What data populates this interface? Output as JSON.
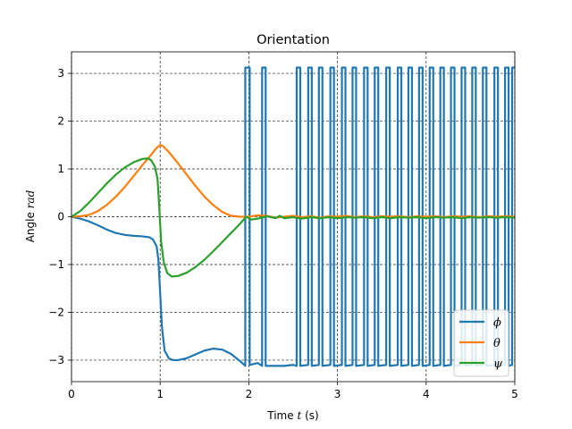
{
  "chart_data": {
    "type": "line",
    "title": "Orientation",
    "xlabel": "Time t (s)",
    "xlabel_parts": {
      "prefix": "Time ",
      "var": "t",
      "suffix": " (s)"
    },
    "ylabel": "Angle rad",
    "ylabel_parts": {
      "prefix": "Angle ",
      "var": "rad"
    },
    "xlim": [
      0,
      5
    ],
    "ylim": [
      -3.45,
      3.45
    ],
    "xticks": [
      0,
      1,
      2,
      3,
      4,
      5
    ],
    "xtick_labels": [
      "0",
      "1",
      "2",
      "3",
      "4",
      "5"
    ],
    "yticks": [
      -3,
      -2,
      -1,
      0,
      1,
      2,
      3
    ],
    "ytick_labels": [
      "−3",
      "−2",
      "−1",
      "0",
      "1",
      "2",
      "3"
    ],
    "grid": true,
    "legend_position": "bottom-right",
    "series": [
      {
        "name": "ϕ",
        "color": "#1f77b4",
        "points": [
          [
            0,
            0
          ],
          [
            0.1,
            -0.04
          ],
          [
            0.2,
            -0.1
          ],
          [
            0.3,
            -0.18
          ],
          [
            0.4,
            -0.27
          ],
          [
            0.5,
            -0.34
          ],
          [
            0.6,
            -0.38
          ],
          [
            0.7,
            -0.4
          ],
          [
            0.8,
            -0.41
          ],
          [
            0.88,
            -0.43
          ],
          [
            0.92,
            -0.48
          ],
          [
            0.96,
            -0.62
          ],
          [
            0.98,
            -0.9
          ],
          [
            1.0,
            -1.6
          ],
          [
            1.02,
            -2.3
          ],
          [
            1.05,
            -2.8
          ],
          [
            1.1,
            -2.97
          ],
          [
            1.15,
            -3.0
          ],
          [
            1.2,
            -3.0
          ],
          [
            1.3,
            -2.96
          ],
          [
            1.4,
            -2.88
          ],
          [
            1.5,
            -2.8
          ],
          [
            1.6,
            -2.76
          ],
          [
            1.7,
            -2.78
          ],
          [
            1.8,
            -2.87
          ],
          [
            1.9,
            -3.02
          ],
          [
            1.95,
            -3.1
          ],
          [
            1.96,
            -3.12
          ],
          [
            1.96,
            3.12
          ],
          [
            2.01,
            3.12
          ],
          [
            2.01,
            -3.1
          ],
          [
            2.1,
            -3.06
          ],
          [
            2.15,
            -3.12
          ],
          [
            2.15,
            3.12
          ],
          [
            2.19,
            3.12
          ],
          [
            2.19,
            -3.12
          ],
          [
            2.3,
            -3.12
          ],
          [
            2.4,
            -3.12
          ],
          [
            2.5,
            -3.1
          ],
          [
            2.54,
            -3.12
          ],
          [
            2.54,
            3.12
          ],
          [
            2.58,
            3.12
          ],
          [
            2.58,
            -3.12
          ],
          [
            2.67,
            -3.1
          ],
          [
            2.67,
            3.12
          ],
          [
            2.71,
            3.12
          ],
          [
            2.71,
            -3.12
          ],
          [
            2.79,
            -3.1
          ],
          [
            2.79,
            3.12
          ],
          [
            2.83,
            3.12
          ],
          [
            2.83,
            -3.12
          ],
          [
            2.92,
            -3.1
          ],
          [
            2.92,
            3.12
          ],
          [
            2.96,
            3.12
          ],
          [
            2.96,
            -3.12
          ],
          [
            3.05,
            -3.1
          ],
          [
            3.05,
            3.12
          ],
          [
            3.09,
            3.12
          ],
          [
            3.09,
            -3.12
          ],
          [
            3.17,
            -3.1
          ],
          [
            3.17,
            3.12
          ],
          [
            3.21,
            3.12
          ],
          [
            3.21,
            -3.12
          ],
          [
            3.3,
            -3.1
          ],
          [
            3.3,
            3.12
          ],
          [
            3.34,
            3.12
          ],
          [
            3.34,
            -3.12
          ],
          [
            3.42,
            -3.1
          ],
          [
            3.42,
            3.12
          ],
          [
            3.46,
            3.12
          ],
          [
            3.46,
            -3.12
          ],
          [
            3.55,
            -3.1
          ],
          [
            3.55,
            3.12
          ],
          [
            3.59,
            3.12
          ],
          [
            3.59,
            -3.12
          ],
          [
            3.68,
            -3.1
          ],
          [
            3.68,
            3.12
          ],
          [
            3.72,
            3.12
          ],
          [
            3.72,
            -3.12
          ],
          [
            3.8,
            -3.1
          ],
          [
            3.8,
            3.12
          ],
          [
            3.84,
            3.12
          ],
          [
            3.84,
            -3.12
          ],
          [
            3.92,
            -3.1
          ],
          [
            3.92,
            3.12
          ],
          [
            3.96,
            3.12
          ],
          [
            3.96,
            -3.12
          ],
          [
            4.04,
            -3.1
          ],
          [
            4.04,
            3.12
          ],
          [
            4.08,
            3.12
          ],
          [
            4.08,
            -3.12
          ],
          [
            4.16,
            -3.1
          ],
          [
            4.16,
            3.12
          ],
          [
            4.2,
            3.12
          ],
          [
            4.2,
            -3.12
          ],
          [
            4.28,
            -3.1
          ],
          [
            4.28,
            3.12
          ],
          [
            4.32,
            3.12
          ],
          [
            4.32,
            -3.12
          ],
          [
            4.4,
            -3.1
          ],
          [
            4.4,
            3.12
          ],
          [
            4.44,
            3.12
          ],
          [
            4.44,
            -3.12
          ],
          [
            4.52,
            -3.1
          ],
          [
            4.52,
            3.12
          ],
          [
            4.56,
            3.12
          ],
          [
            4.56,
            -3.12
          ],
          [
            4.64,
            -3.1
          ],
          [
            4.64,
            3.12
          ],
          [
            4.68,
            3.12
          ],
          [
            4.68,
            -3.12
          ],
          [
            4.77,
            -3.1
          ],
          [
            4.77,
            3.12
          ],
          [
            4.81,
            3.12
          ],
          [
            4.81,
            -3.12
          ],
          [
            4.89,
            -3.1
          ],
          [
            4.89,
            3.12
          ],
          [
            4.93,
            3.12
          ],
          [
            4.93,
            -3.12
          ],
          [
            4.97,
            -3.1
          ],
          [
            4.97,
            3.12
          ],
          [
            5.0,
            3.12
          ]
        ]
      },
      {
        "name": "θ",
        "color": "#ff7f0e",
        "points": [
          [
            0,
            0
          ],
          [
            0.1,
            0.01
          ],
          [
            0.2,
            0.04
          ],
          [
            0.3,
            0.12
          ],
          [
            0.4,
            0.25
          ],
          [
            0.5,
            0.42
          ],
          [
            0.6,
            0.62
          ],
          [
            0.7,
            0.85
          ],
          [
            0.8,
            1.08
          ],
          [
            0.9,
            1.3
          ],
          [
            0.96,
            1.44
          ],
          [
            1.0,
            1.5
          ],
          [
            1.03,
            1.48
          ],
          [
            1.1,
            1.35
          ],
          [
            1.2,
            1.12
          ],
          [
            1.3,
            0.88
          ],
          [
            1.4,
            0.64
          ],
          [
            1.5,
            0.42
          ],
          [
            1.6,
            0.24
          ],
          [
            1.7,
            0.1
          ],
          [
            1.8,
            0.02
          ],
          [
            1.9,
            0.0
          ],
          [
            2.0,
            0.0
          ],
          [
            2.1,
            0.03
          ],
          [
            2.2,
            0.02
          ],
          [
            2.3,
            -0.02
          ],
          [
            2.4,
            0.0
          ],
          [
            2.5,
            0.02
          ],
          [
            2.6,
            -0.01
          ],
          [
            2.7,
            0.01
          ],
          [
            2.8,
            -0.02
          ],
          [
            2.9,
            0.01
          ],
          [
            3.0,
            0.0
          ],
          [
            3.1,
            0.02
          ],
          [
            3.2,
            -0.01
          ],
          [
            3.3,
            0.01
          ],
          [
            3.4,
            -0.01
          ],
          [
            3.5,
            0.01
          ],
          [
            3.6,
            0.0
          ],
          [
            3.7,
            0.01
          ],
          [
            3.8,
            -0.01
          ],
          [
            3.9,
            0.01
          ],
          [
            4.0,
            0.0
          ],
          [
            4.1,
            0.01
          ],
          [
            4.2,
            -0.01
          ],
          [
            4.3,
            0.01
          ],
          [
            4.4,
            0.0
          ],
          [
            4.5,
            0.01
          ],
          [
            4.6,
            -0.01
          ],
          [
            4.7,
            0.01
          ],
          [
            4.8,
            0.0
          ],
          [
            4.9,
            0.01
          ],
          [
            5.0,
            0.0
          ]
        ]
      },
      {
        "name": "ψ",
        "color": "#2ca02c",
        "points": [
          [
            0,
            0
          ],
          [
            0.1,
            0.12
          ],
          [
            0.2,
            0.3
          ],
          [
            0.3,
            0.5
          ],
          [
            0.4,
            0.7
          ],
          [
            0.5,
            0.88
          ],
          [
            0.6,
            1.03
          ],
          [
            0.7,
            1.14
          ],
          [
            0.8,
            1.21
          ],
          [
            0.86,
            1.22
          ],
          [
            0.9,
            1.18
          ],
          [
            0.94,
            1.05
          ],
          [
            0.97,
            0.8
          ],
          [
            0.99,
            0.2
          ],
          [
            1.01,
            -0.5
          ],
          [
            1.04,
            -0.95
          ],
          [
            1.08,
            -1.18
          ],
          [
            1.13,
            -1.25
          ],
          [
            1.2,
            -1.24
          ],
          [
            1.3,
            -1.17
          ],
          [
            1.4,
            -1.05
          ],
          [
            1.5,
            -0.9
          ],
          [
            1.6,
            -0.72
          ],
          [
            1.7,
            -0.53
          ],
          [
            1.8,
            -0.34
          ],
          [
            1.9,
            -0.15
          ],
          [
            1.97,
            0.0
          ],
          [
            2.03,
            -0.06
          ],
          [
            2.1,
            -0.04
          ],
          [
            2.2,
            0.01
          ],
          [
            2.3,
            -0.03
          ],
          [
            2.35,
            0.02
          ],
          [
            2.4,
            -0.03
          ],
          [
            2.5,
            -0.01
          ],
          [
            2.6,
            -0.04
          ],
          [
            2.7,
            -0.01
          ],
          [
            2.8,
            -0.03
          ],
          [
            2.9,
            -0.01
          ],
          [
            3.0,
            -0.03
          ],
          [
            3.1,
            -0.01
          ],
          [
            3.2,
            -0.02
          ],
          [
            3.3,
            -0.01
          ],
          [
            3.4,
            -0.03
          ],
          [
            3.5,
            -0.01
          ],
          [
            3.6,
            -0.03
          ],
          [
            3.7,
            -0.01
          ],
          [
            3.8,
            -0.02
          ],
          [
            3.9,
            -0.01
          ],
          [
            4.0,
            -0.03
          ],
          [
            4.1,
            -0.01
          ],
          [
            4.2,
            -0.02
          ],
          [
            4.3,
            -0.01
          ],
          [
            4.4,
            -0.03
          ],
          [
            4.5,
            -0.01
          ],
          [
            4.6,
            -0.02
          ],
          [
            4.7,
            -0.01
          ],
          [
            4.8,
            -0.02
          ],
          [
            4.9,
            -0.01
          ],
          [
            5.0,
            -0.02
          ]
        ]
      }
    ]
  }
}
